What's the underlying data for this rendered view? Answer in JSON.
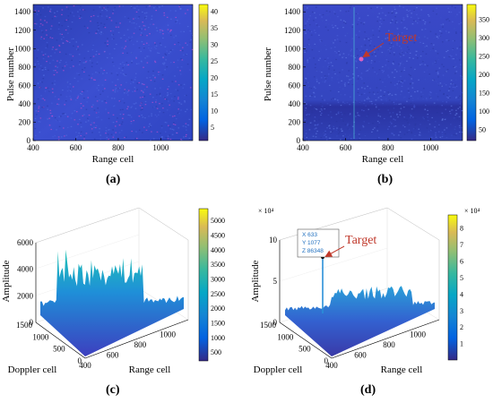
{
  "panels": [
    {
      "id": "a",
      "caption": "(a)",
      "type": "heatmap",
      "xlabel": "Range cell",
      "ylabel": "Pulse number",
      "xticks": [
        "400",
        "600",
        "800",
        "1000"
      ],
      "yticks": [
        "0",
        "200",
        "400",
        "600",
        "800",
        "1000",
        "1200",
        "1400"
      ],
      "colorbar_ticks": [
        "5",
        "10",
        "15",
        "20",
        "25",
        "30",
        "35",
        "40"
      ]
    },
    {
      "id": "b",
      "caption": "(b)",
      "type": "heatmap",
      "xlabel": "Range cell",
      "ylabel": "Pulse number",
      "xticks": [
        "400",
        "600",
        "800",
        "1000"
      ],
      "yticks": [
        "0",
        "200",
        "400",
        "600",
        "800",
        "1000",
        "1200",
        "1400"
      ],
      "colorbar_ticks": [
        "50",
        "100",
        "150",
        "200",
        "250",
        "300",
        "350"
      ],
      "annotation": "Target"
    },
    {
      "id": "c",
      "caption": "(c)",
      "type": "surface",
      "xlabel": "Range cell",
      "ylabel": "Doppler cell",
      "zlabel": "Amplitude",
      "xticks": [
        "400",
        "600",
        "800",
        "1000"
      ],
      "yticks": [
        "0",
        "500",
        "1000",
        "1500"
      ],
      "zticks": [
        "0",
        "2000",
        "4000",
        "6000"
      ],
      "colorbar_ticks": [
        "500",
        "1000",
        "1500",
        "2000",
        "2500",
        "3000",
        "3500",
        "4000",
        "4500",
        "5000"
      ]
    },
    {
      "id": "d",
      "caption": "(d)",
      "type": "surface",
      "xlabel": "Range cell",
      "ylabel": "Doppler cell",
      "zlabel": "Amplitude",
      "xticks": [
        "400",
        "600",
        "800",
        "1000"
      ],
      "yticks": [
        "0",
        "500",
        "1000",
        "1500"
      ],
      "zticks": [
        "0",
        "5",
        "10"
      ],
      "z_exponent": "× 10⁴",
      "colorbar_ticks": [
        "1",
        "2",
        "3",
        "4",
        "5",
        "6",
        "7",
        "8"
      ],
      "colorbar_exponent": "× 10⁴",
      "annotation": "Target",
      "datatip": {
        "x": "X 633",
        "y": "Y 1077",
        "z": "Z 86348"
      }
    }
  ],
  "chart_data": [
    {
      "type": "heatmap",
      "panel": "a",
      "xlabel": "Range cell",
      "ylabel": "Pulse number",
      "xlim": [
        400,
        1150
      ],
      "ylim": [
        0,
        1480
      ],
      "colorbar_range": [
        1,
        42
      ]
    },
    {
      "type": "heatmap",
      "panel": "b",
      "xlabel": "Range cell",
      "ylabel": "Pulse number",
      "xlim": [
        400,
        1150
      ],
      "ylim": [
        0,
        1480
      ],
      "colorbar_range": [
        20,
        390
      ],
      "target": {
        "x": 660,
        "y": 880
      }
    },
    {
      "type": "surface",
      "panel": "c",
      "xlabel": "Range cell",
      "ylabel": "Doppler cell",
      "zlabel": "Amplitude",
      "xlim": [
        400,
        1150
      ],
      "ylim": [
        0,
        1500
      ],
      "zlim": [
        0,
        6000
      ],
      "peak": {
        "x": 520,
        "y": 1200,
        "z": 5000
      }
    },
    {
      "type": "surface",
      "panel": "d",
      "xlabel": "Range cell",
      "ylabel": "Doppler cell",
      "zlabel": "Amplitude",
      "xlim": [
        400,
        1150
      ],
      "ylim": [
        0,
        1500
      ],
      "zlim": [
        0,
        100000
      ],
      "peak": {
        "x": 633,
        "y": 1077,
        "z": 86348
      }
    }
  ],
  "colors": {
    "parula_dark": "#352a87",
    "parula_blue": "#0f5cdd",
    "parula_cyan": "#12b1b1",
    "parula_yellow": "#f9fb0e",
    "annotation": "#c0392b",
    "tip_text": "#1f6fbf"
  }
}
